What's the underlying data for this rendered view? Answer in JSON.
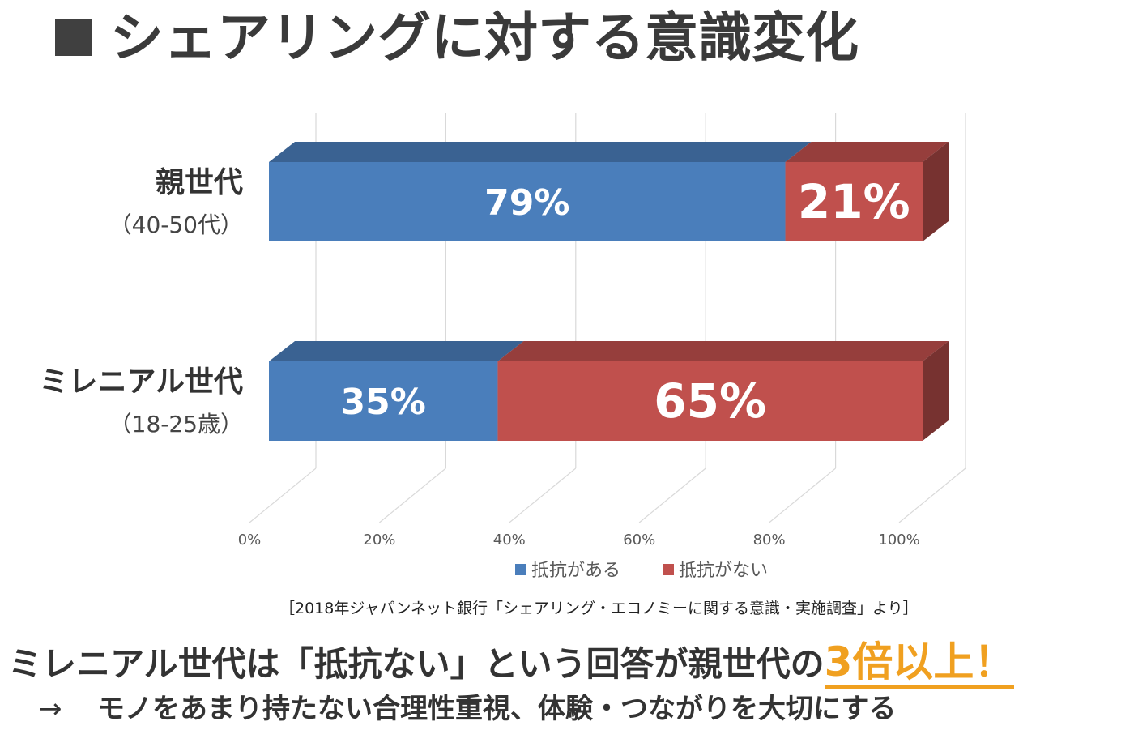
{
  "title": "シェアリングに対する意識変化",
  "chart_data": {
    "type": "bar",
    "orientation": "horizontal",
    "stacked": true,
    "three_d": true,
    "categories": [
      {
        "name": "親世代",
        "sub": "（40-50代）"
      },
      {
        "name": "ミレニアル世代",
        "sub": "（18-25歳）"
      }
    ],
    "series": [
      {
        "name": "抵抗がある",
        "values": [
          79,
          35
        ],
        "labels": [
          "79%",
          "35%"
        ],
        "color": "#4a7ebb"
      },
      {
        "name": "抵抗がない",
        "values": [
          21,
          65
        ],
        "labels": [
          "21%",
          "65%"
        ],
        "color": "#c0504d"
      }
    ],
    "xlim": [
      0,
      100
    ],
    "x_ticks": [
      "0%",
      "20%",
      "40%",
      "60%",
      "80%",
      "100%"
    ],
    "grid": true,
    "legend_position": "bottom"
  },
  "source": "［2018年ジャパンネット銀行「シェアリング・エコノミーに関する意識・実施調査」より］",
  "conclusion": {
    "text": "ミレニアル世代は「抵抗ない」という回答が親世代の",
    "highlight": "3倍以上！",
    "highlight_color": "#f0a020"
  },
  "sub_conclusion": {
    "arrow": "→",
    "text": "モノをあまり持たない合理性重視、体験・つながりを大切にする"
  }
}
